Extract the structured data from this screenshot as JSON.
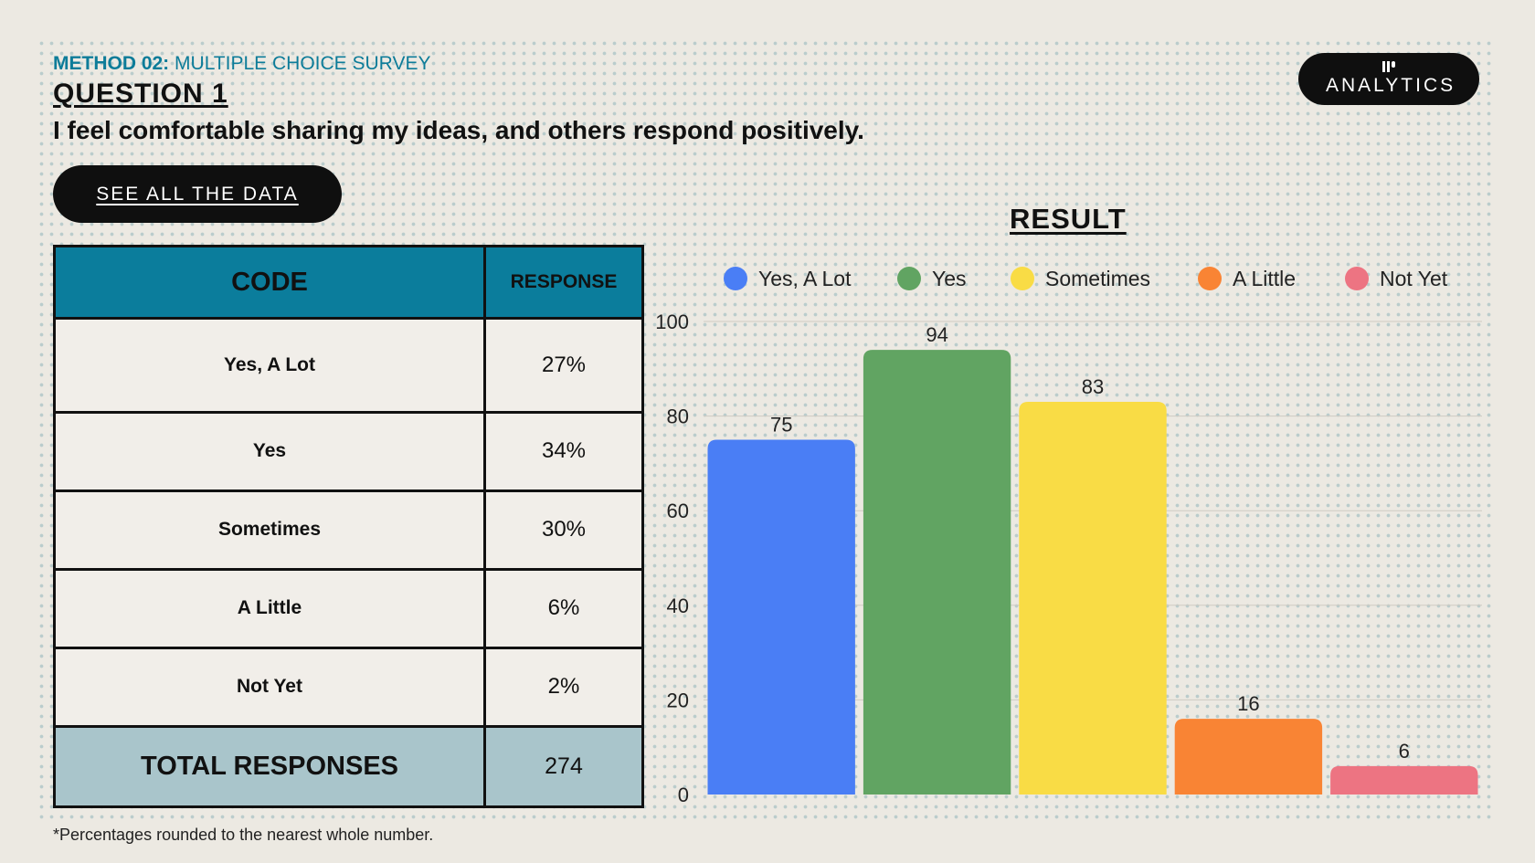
{
  "header": {
    "method_label": "METHOD 02:",
    "method_title": "MULTIPLE CHOICE SURVEY",
    "question_label": "QUESTION 1",
    "statement": "I feel comfortable sharing my ideas, and others respond positively."
  },
  "see_button_label": "SEE ALL THE DATA",
  "logo": {
    "text": "ANALYTICS",
    "icon": "analytics-logo-icon"
  },
  "table": {
    "headers": [
      "CODE",
      "RESPONSE"
    ],
    "rows": [
      {
        "code": "Yes, A Lot",
        "response": "27%"
      },
      {
        "code": "Yes",
        "response": "34%"
      },
      {
        "code": "Sometimes",
        "response": "30%"
      },
      {
        "code": "A Little",
        "response": "6%"
      },
      {
        "code": "Not Yet",
        "response": "2%"
      }
    ],
    "total_label": "TOTAL RESPONSES",
    "total_value": "274"
  },
  "result_title": "RESULT",
  "footnote": "*Percentages rounded to the nearest whole number.",
  "colors": {
    "table_header": "#0b7d9c",
    "total_row": "#a9c5cb",
    "accent": "#0d7c99"
  },
  "chart_data": {
    "type": "bar",
    "title": "RESULT",
    "xlabel": "",
    "ylabel": "",
    "categories": [
      "Yes, A Lot",
      "Yes",
      "Sometimes",
      "A Little",
      "Not Yet"
    ],
    "values": [
      75,
      94,
      83,
      16,
      6
    ],
    "colors": [
      "#4a7ef5",
      "#61a462",
      "#f9dc45",
      "#f98434",
      "#ed7482"
    ],
    "ylim": [
      0,
      100
    ],
    "yticks": [
      0,
      20,
      40,
      60,
      80,
      100
    ],
    "grid": true,
    "legend_position": "top",
    "data_labels": true
  }
}
